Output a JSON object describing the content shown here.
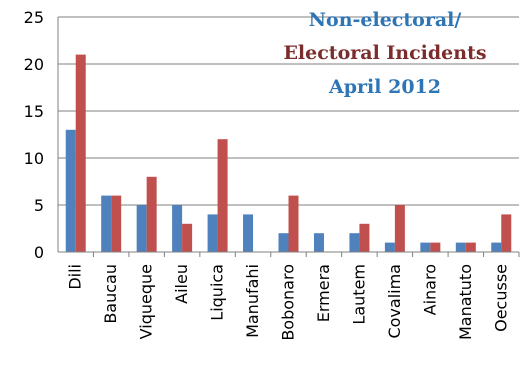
{
  "chart_data": {
    "type": "bar",
    "title_lines": [
      {
        "text": "Non-electoral/",
        "color": "#2E75B6"
      },
      {
        "text": "Electoral Incidents",
        "color": "#7B2C2C"
      },
      {
        "text": "April 2012",
        "color": "#2E75B6"
      }
    ],
    "xlabel": "",
    "ylabel": "",
    "ylim": [
      0,
      25
    ],
    "yticks": [
      0,
      5,
      10,
      15,
      20,
      25
    ],
    "grid": true,
    "categories": [
      "Dili",
      "Baucau",
      "Viqueque",
      "Aileu",
      "Liquica",
      "Manufahi",
      "Bobonaro",
      "Ermera",
      "Lautem",
      "Covalima",
      "Ainaro",
      "Manatuto",
      "Oecusse"
    ],
    "series": [
      {
        "color": "#4F81BD",
        "values": [
          13,
          6,
          5,
          5,
          4,
          4,
          2,
          2,
          2,
          1,
          1,
          1,
          1
        ]
      },
      {
        "color": "#C0504D",
        "values": [
          21,
          6,
          8,
          3,
          12,
          0,
          6,
          0,
          3,
          5,
          1,
          1,
          4
        ]
      }
    ]
  }
}
